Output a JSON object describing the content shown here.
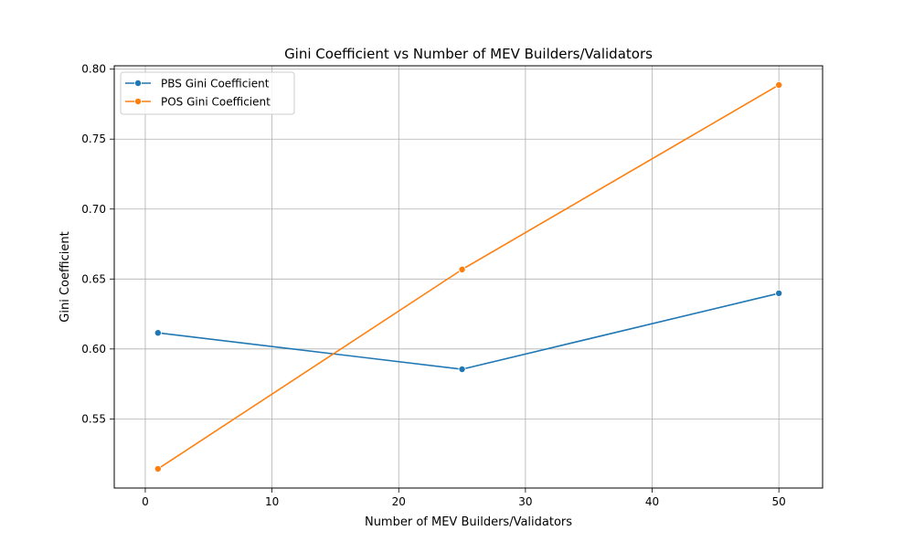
{
  "chart_data": {
    "type": "line",
    "title": "Gini Coefficient vs Number of MEV Builders/Validators",
    "xlabel": "Number of MEV Builders/Validators",
    "ylabel": "Gini Coefficient",
    "x": [
      1,
      25,
      50
    ],
    "series": [
      {
        "name": "PBS Gini Coefficient",
        "values": [
          0.6115,
          0.5855,
          0.6398
        ],
        "color": "#1f77b4"
      },
      {
        "name": "POS Gini Coefficient",
        "values": [
          0.5143,
          0.6568,
          0.7887
        ],
        "color": "#ff7f0e"
      }
    ],
    "xlim": [
      -2.45,
      53.45
    ],
    "ylim": [
      0.5006,
      0.8024
    ],
    "xticks": [
      0,
      10,
      20,
      30,
      40,
      50
    ],
    "xtick_labels": [
      "0",
      "10",
      "20",
      "30",
      "40",
      "50"
    ],
    "yticks": [
      0.55,
      0.6,
      0.65,
      0.7,
      0.75,
      0.8
    ],
    "ytick_labels": [
      "0.55",
      "0.60",
      "0.65",
      "0.70",
      "0.75",
      "0.80"
    ],
    "grid": true,
    "legend_position": "top-left",
    "markers": "circle"
  }
}
